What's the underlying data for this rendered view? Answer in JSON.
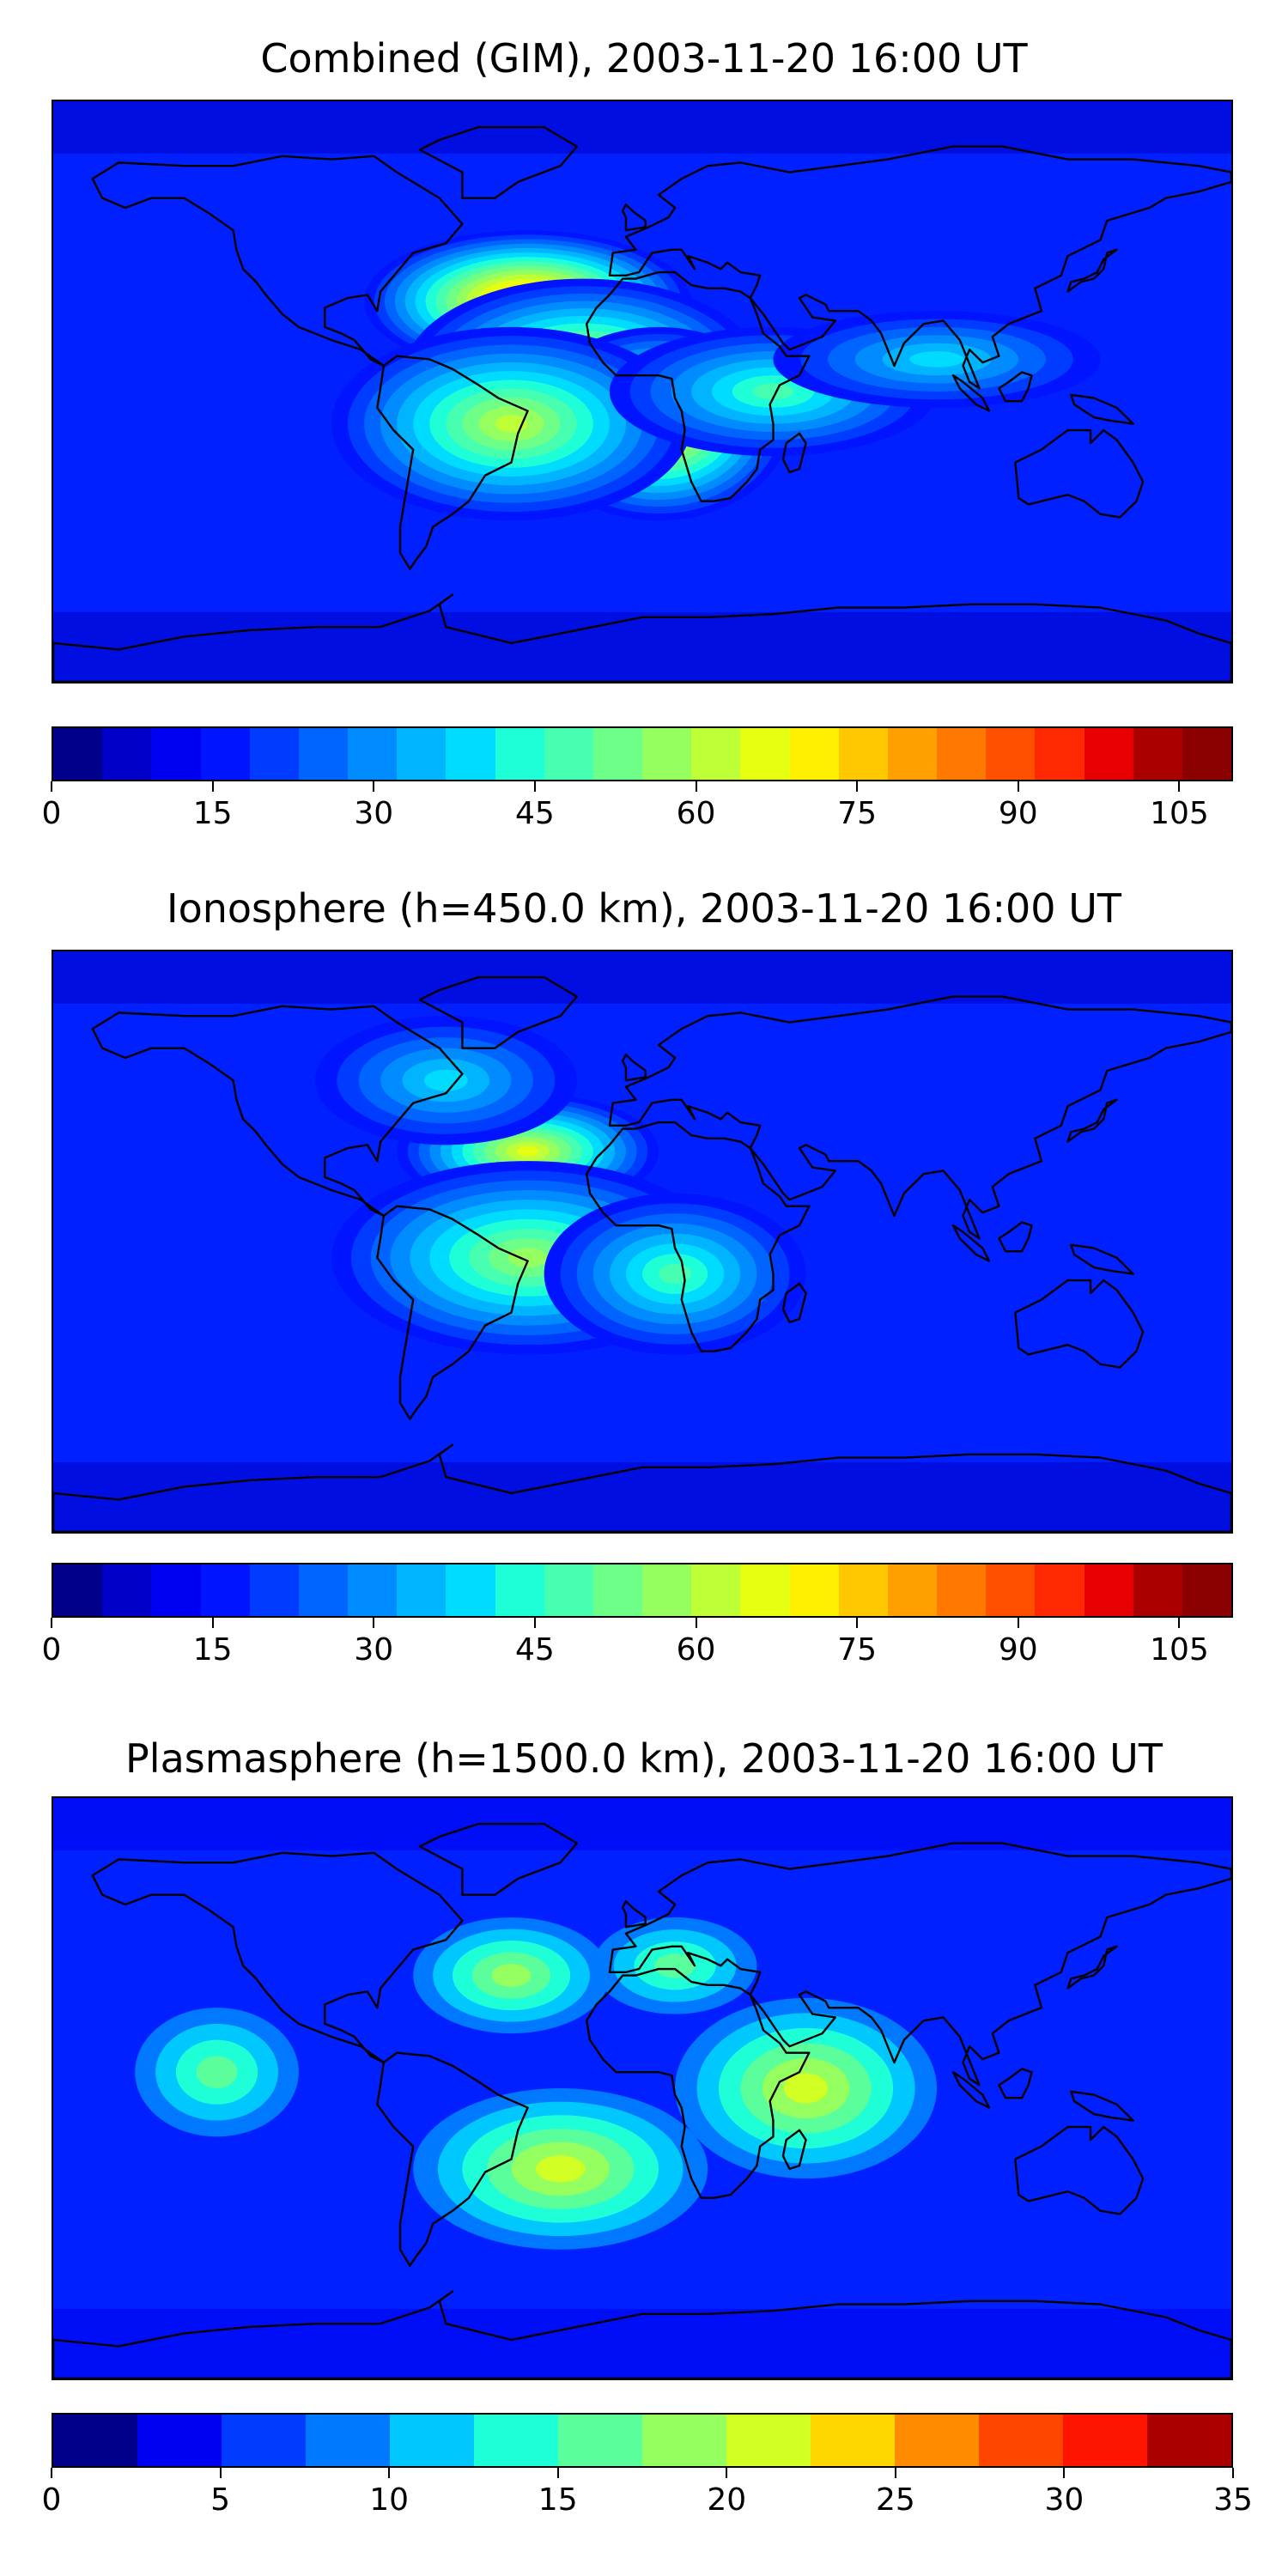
{
  "panels": [
    {
      "title": "Combined (GIM), 2003-11-20 16:00 UT",
      "cbar_colors": [
        "#00008b",
        "#0000c8",
        "#0000f0",
        "#0014ff",
        "#003cff",
        "#0064ff",
        "#008cff",
        "#00b4ff",
        "#00dcff",
        "#1effd8",
        "#46ffb0",
        "#6eff88",
        "#96ff60",
        "#beff38",
        "#e6ff10",
        "#fff000",
        "#ffc800",
        "#ffa000",
        "#ff7800",
        "#ff5000",
        "#ff2800",
        "#e60000",
        "#aa0000",
        "#8b0000"
      ],
      "ticks": [
        "0",
        "15",
        "30",
        "45",
        "60",
        "75",
        "90",
        "105"
      ],
      "tick_values": [
        0,
        15,
        30,
        45,
        60,
        75,
        90,
        105
      ],
      "range": [
        0,
        110
      ],
      "blobs": [
        {
          "lon": -35,
          "lat": 28,
          "level": 0.8,
          "rx": 50,
          "ry": 22
        },
        {
          "lon": -18,
          "lat": 5,
          "level": 0.65,
          "rx": 55,
          "ry": 30
        },
        {
          "lon": 5,
          "lat": -10,
          "level": 0.7,
          "rx": 40,
          "ry": 30
        },
        {
          "lon": -40,
          "lat": -10,
          "level": 0.55,
          "rx": 55,
          "ry": 30
        },
        {
          "lon": 40,
          "lat": 0,
          "level": 0.45,
          "rx": 50,
          "ry": 20
        },
        {
          "lon": 90,
          "lat": 10,
          "level": 0.35,
          "rx": 50,
          "ry": 15
        }
      ]
    },
    {
      "title": "Ionosphere  (h=450.0 km), 2003-11-20 16:00 UT",
      "cbar_colors": [
        "#00008b",
        "#0000c8",
        "#0000f0",
        "#0014ff",
        "#003cff",
        "#0064ff",
        "#008cff",
        "#00b4ff",
        "#00dcff",
        "#1effd8",
        "#46ffb0",
        "#6eff88",
        "#96ff60",
        "#beff38",
        "#e6ff10",
        "#fff000",
        "#ffc800",
        "#ffa000",
        "#ff7800",
        "#ff5000",
        "#ff2800",
        "#e60000",
        "#aa0000",
        "#8b0000"
      ],
      "ticks": [
        "0",
        "15",
        "30",
        "45",
        "60",
        "75",
        "90",
        "105"
      ],
      "tick_values": [
        0,
        15,
        30,
        45,
        60,
        75,
        90,
        105
      ],
      "range": [
        0,
        110
      ],
      "blobs": [
        {
          "lon": -35,
          "lat": 28,
          "level": 0.6,
          "rx": 40,
          "ry": 18
        },
        {
          "lon": -35,
          "lat": -5,
          "level": 0.5,
          "rx": 60,
          "ry": 30
        },
        {
          "lon": 10,
          "lat": -10,
          "level": 0.45,
          "rx": 40,
          "ry": 25
        },
        {
          "lon": -60,
          "lat": 50,
          "level": 0.35,
          "rx": 40,
          "ry": 20
        }
      ]
    },
    {
      "title": "Plasmasphere (h=1500.0 km), 2003-11-20 16:00 UT",
      "cbar_colors": [
        "#00008b",
        "#0000f0",
        "#003cff",
        "#0078ff",
        "#00c8ff",
        "#1effd8",
        "#5aff9c",
        "#96ff60",
        "#d2ff24",
        "#ffd700",
        "#ff8c00",
        "#ff4600",
        "#ff1400",
        "#aa0000"
      ],
      "ticks": [
        "0",
        "5",
        "10",
        "15",
        "20",
        "25",
        "30",
        "35"
      ],
      "tick_values": [
        0,
        5,
        10,
        15,
        20,
        25,
        30,
        35
      ],
      "range": [
        0,
        35
      ],
      "blobs": [
        {
          "lon": -40,
          "lat": 35,
          "level": 0.55,
          "rx": 30,
          "ry": 18
        },
        {
          "lon": -25,
          "lat": -25,
          "level": 0.65,
          "rx": 45,
          "ry": 25
        },
        {
          "lon": 50,
          "lat": 0,
          "level": 0.65,
          "rx": 40,
          "ry": 28
        },
        {
          "lon": -130,
          "lat": 5,
          "level": 0.45,
          "rx": 25,
          "ry": 20
        },
        {
          "lon": 10,
          "lat": 38,
          "level": 0.45,
          "rx": 25,
          "ry": 15
        }
      ]
    }
  ],
  "coastline_color": "#000000",
  "background_level_color": "#0020ff"
}
